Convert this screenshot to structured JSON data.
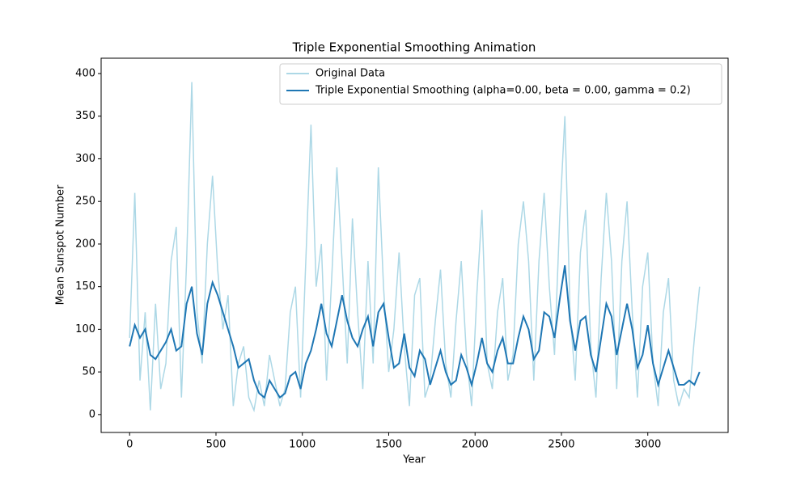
{
  "chart_data": {
    "type": "line",
    "title": "Triple Exponential Smoothing Animation",
    "xlabel": "Year",
    "ylabel": "Mean Sunspot Number",
    "x": [
      0,
      30,
      60,
      90,
      120,
      150,
      180,
      210,
      240,
      270,
      300,
      330,
      360,
      390,
      420,
      450,
      480,
      510,
      540,
      570,
      600,
      630,
      660,
      690,
      720,
      750,
      780,
      810,
      840,
      870,
      900,
      930,
      960,
      990,
      1020,
      1050,
      1080,
      1110,
      1140,
      1170,
      1200,
      1230,
      1260,
      1290,
      1320,
      1350,
      1380,
      1410,
      1440,
      1470,
      1500,
      1530,
      1560,
      1590,
      1620,
      1650,
      1680,
      1710,
      1740,
      1770,
      1800,
      1830,
      1860,
      1890,
      1920,
      1950,
      1980,
      2010,
      2040,
      2070,
      2100,
      2130,
      2160,
      2190,
      2220,
      2250,
      2280,
      2310,
      2340,
      2370,
      2400,
      2430,
      2460,
      2490,
      2520,
      2550,
      2580,
      2610,
      2640,
      2670,
      2700,
      2730,
      2760,
      2790,
      2820,
      2850,
      2880,
      2910,
      2940,
      2970,
      3000,
      3030,
      3060,
      3090,
      3120,
      3150,
      3180,
      3210,
      3240,
      3270,
      3300
    ],
    "series": [
      {
        "name": "Original Data",
        "color": "#add8e6",
        "values": [
          90,
          260,
          40,
          120,
          5,
          130,
          30,
          60,
          180,
          220,
          20,
          180,
          390,
          120,
          60,
          200,
          280,
          170,
          100,
          140,
          10,
          60,
          80,
          20,
          5,
          40,
          10,
          70,
          40,
          10,
          30,
          120,
          150,
          20,
          180,
          340,
          150,
          200,
          40,
          160,
          290,
          180,
          60,
          230,
          120,
          30,
          180,
          60,
          290,
          150,
          50,
          100,
          190,
          80,
          10,
          140,
          160,
          20,
          40,
          110,
          170,
          60,
          20,
          110,
          180,
          70,
          10,
          140,
          240,
          60,
          30,
          120,
          160,
          40,
          70,
          200,
          250,
          180,
          40,
          180,
          260,
          150,
          70,
          230,
          350,
          120,
          40,
          190,
          240,
          80,
          20,
          160,
          260,
          180,
          30,
          180,
          250,
          120,
          20,
          150,
          190,
          60,
          10,
          120,
          160,
          40,
          10,
          30,
          20,
          90,
          150
        ]
      },
      {
        "name": "Triple Exponential Smoothing (alpha=0.00, beta = 0.00, gamma = 0.2)",
        "color": "#1f77b4",
        "values": [
          80,
          105,
          90,
          100,
          70,
          65,
          75,
          85,
          100,
          75,
          80,
          130,
          150,
          95,
          70,
          130,
          155,
          140,
          120,
          100,
          80,
          55,
          60,
          65,
          40,
          25,
          20,
          40,
          30,
          20,
          25,
          45,
          50,
          30,
          60,
          75,
          100,
          130,
          95,
          80,
          110,
          140,
          110,
          90,
          80,
          100,
          115,
          80,
          120,
          130,
          90,
          55,
          60,
          95,
          55,
          45,
          75,
          65,
          35,
          55,
          75,
          50,
          35,
          40,
          70,
          55,
          35,
          60,
          90,
          60,
          50,
          75,
          90,
          60,
          60,
          90,
          115,
          100,
          65,
          75,
          120,
          115,
          90,
          135,
          175,
          110,
          75,
          110,
          115,
          70,
          50,
          90,
          130,
          115,
          70,
          100,
          130,
          100,
          55,
          70,
          105,
          60,
          35,
          55,
          75,
          55,
          35,
          35,
          40,
          35,
          50
        ]
      }
    ],
    "xlim": [
      -165,
      3465
    ],
    "ylim": [
      -21,
      418
    ],
    "xticks": [
      0,
      500,
      1000,
      1500,
      2000,
      2500,
      3000
    ],
    "yticks": [
      0,
      50,
      100,
      150,
      200,
      250,
      300,
      350,
      400
    ],
    "legend": "upper right"
  }
}
